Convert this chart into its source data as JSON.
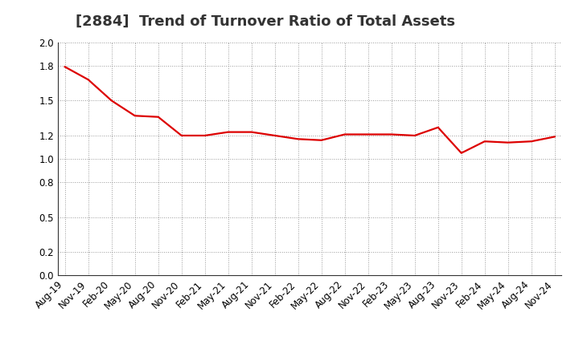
{
  "title": "[2884]  Trend of Turnover Ratio of Total Assets",
  "x_labels": [
    "Aug-19",
    "Nov-19",
    "Feb-20",
    "May-20",
    "Aug-20",
    "Nov-20",
    "Feb-21",
    "May-21",
    "Aug-21",
    "Nov-21",
    "Feb-22",
    "May-22",
    "Aug-22",
    "Nov-22",
    "Feb-23",
    "May-23",
    "Aug-23",
    "Nov-23",
    "Feb-24",
    "May-24",
    "Aug-24",
    "Nov-24"
  ],
  "y_values": [
    1.79,
    1.68,
    1.5,
    1.37,
    1.36,
    1.2,
    1.2,
    1.23,
    1.23,
    1.2,
    1.17,
    1.16,
    1.21,
    1.21,
    1.21,
    1.2,
    1.27,
    1.05,
    1.15,
    1.14,
    1.15,
    1.19
  ],
  "line_color": "#dd0000",
  "line_width": 1.6,
  "ylim": [
    0.0,
    2.0
  ],
  "yticks": [
    0.0,
    0.2,
    0.5,
    0.8,
    1.0,
    1.2,
    1.5,
    1.8,
    2.0
  ],
  "grid_color": "#999999",
  "background_color": "#ffffff",
  "title_fontsize": 13,
  "tick_fontsize": 8.5,
  "title_color": "#333333"
}
